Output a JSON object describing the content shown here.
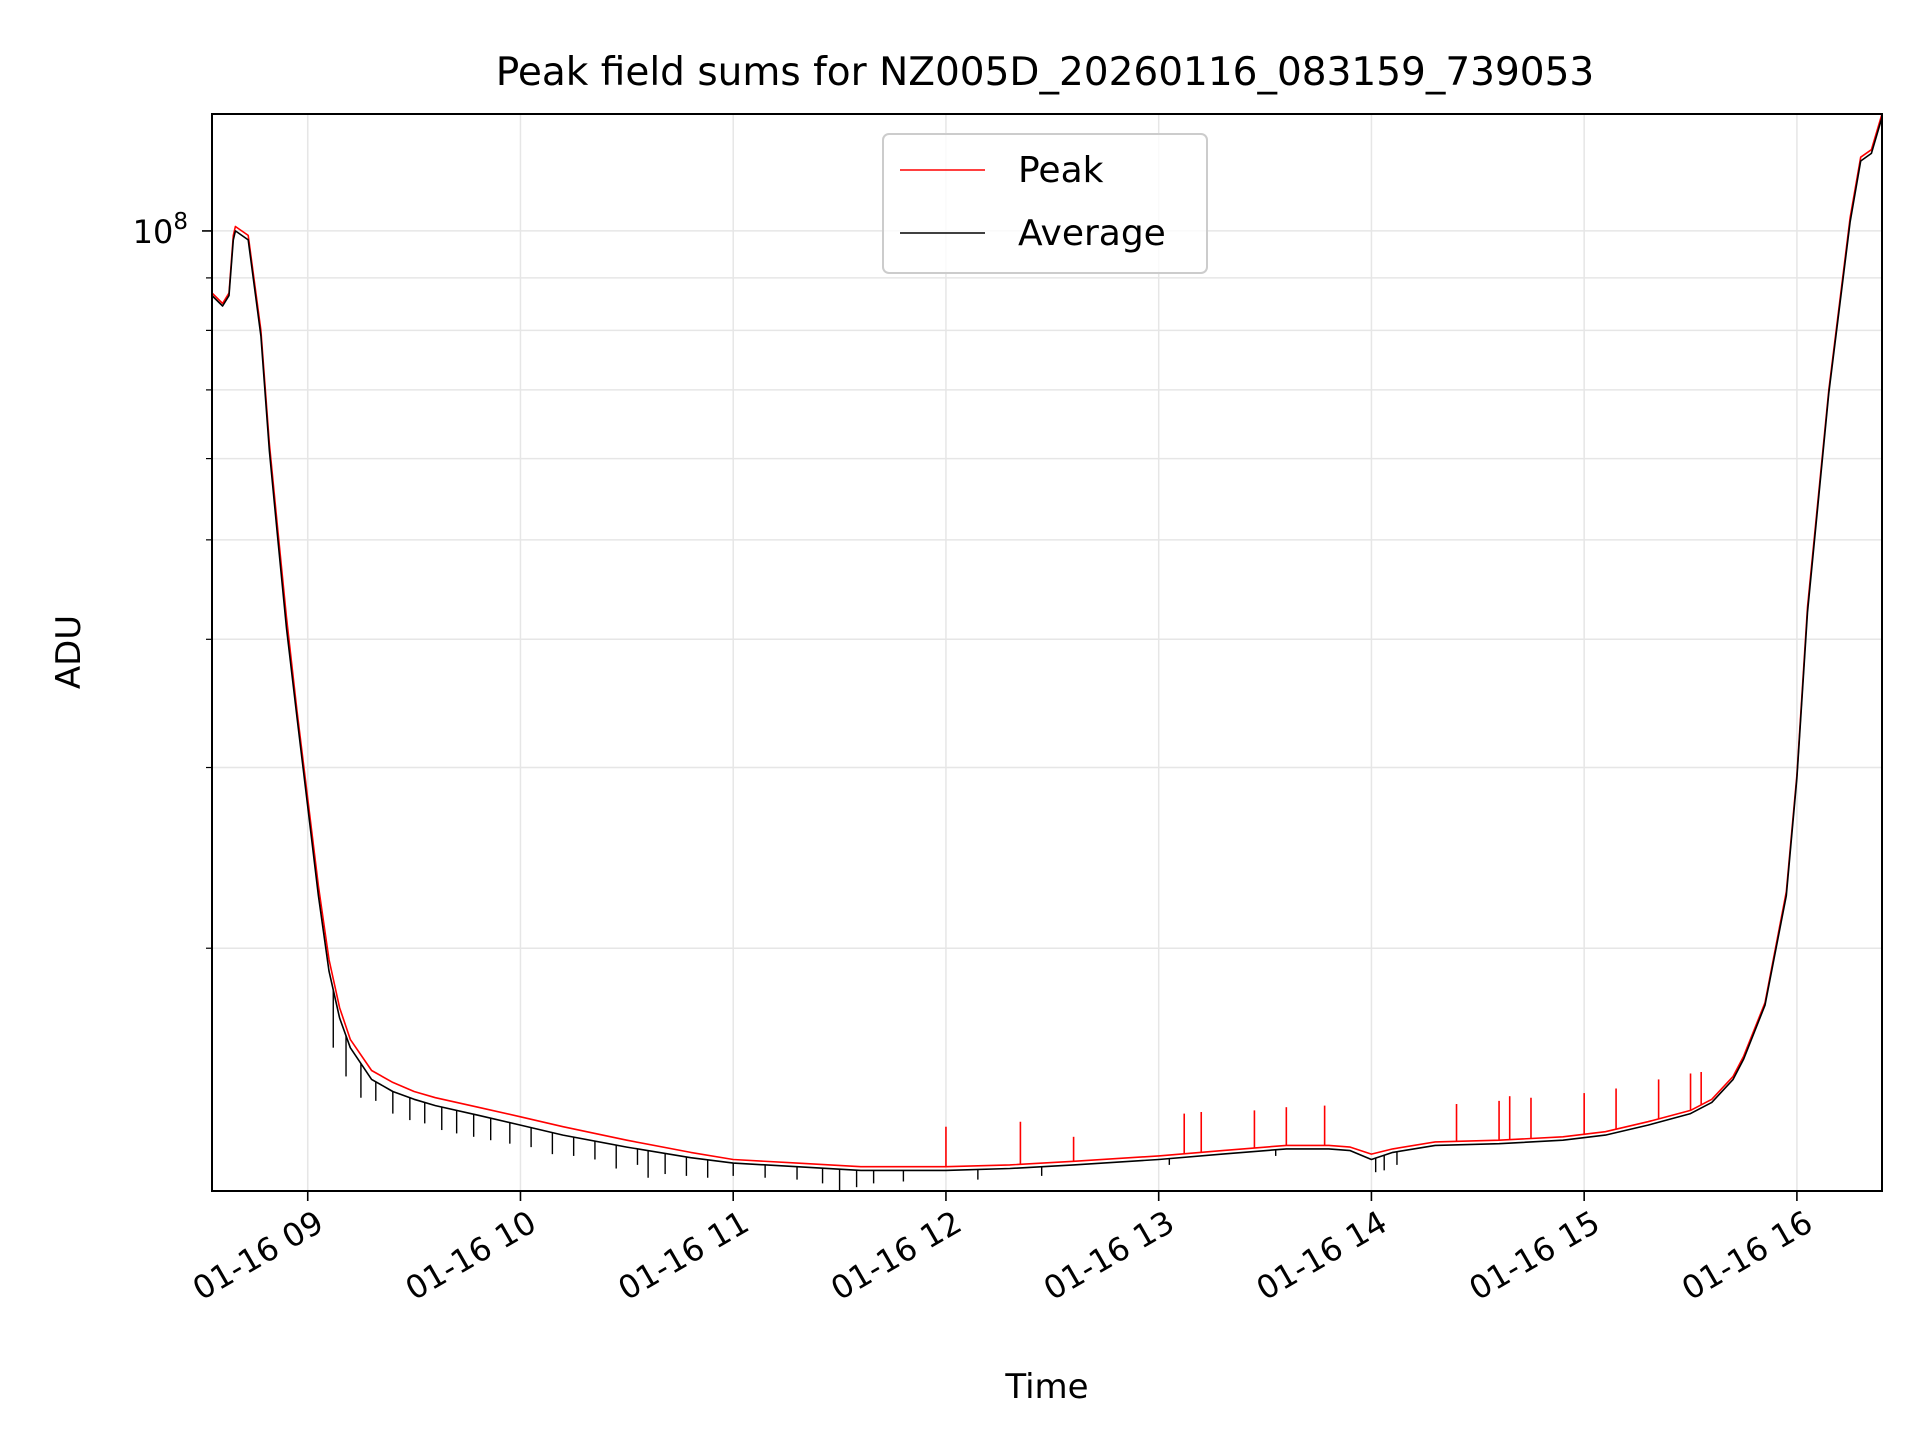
{
  "chart_data": {
    "type": "line",
    "title": "Peak field sums for NZ005D_20260116_083159_739053",
    "xlabel": "Time",
    "ylabel": "ADU",
    "yscale": "log",
    "grid": true,
    "legend_position": "upper-center",
    "xlim": [
      8.55,
      16.4
    ],
    "ylim": [
      11600000,
      130000000
    ],
    "x_tick_values": [
      9,
      10,
      11,
      12,
      13,
      14,
      15,
      16
    ],
    "x_tick_labels": [
      "01-16 09",
      "01-16 10",
      "01-16 11",
      "01-16 12",
      "01-16 13",
      "01-16 14",
      "01-16 15",
      "01-16 16"
    ],
    "y_major_ticks": [
      {
        "value": 100000000,
        "base": "10",
        "exponent": "8"
      }
    ],
    "y_minor_ticks": [
      20000000,
      30000000,
      40000000,
      50000000,
      60000000,
      70000000,
      80000000,
      90000000
    ],
    "colors": {
      "peak": "#ff0000",
      "average": "#000000",
      "grid": "#e6e6e6"
    },
    "series": [
      {
        "name": "Peak",
        "color": "#ff0000",
        "x": [
          8.55,
          8.6,
          8.63,
          8.65,
          8.66,
          8.72,
          8.78,
          8.82,
          8.86,
          8.9,
          8.95,
          9.0,
          9.05,
          9.1,
          9.15,
          9.2,
          9.3,
          9.4,
          9.5,
          9.6,
          9.8,
          10.0,
          10.2,
          10.5,
          10.8,
          11.0,
          11.3,
          11.6,
          12.0,
          12.3,
          12.6,
          13.0,
          13.3,
          13.6,
          13.8,
          13.9,
          14.0,
          14.1,
          14.3,
          14.6,
          14.9,
          15.1,
          15.3,
          15.5,
          15.6,
          15.7,
          15.75,
          15.85,
          15.95,
          16.0,
          16.05,
          16.15,
          16.25,
          16.3,
          16.35,
          16.4
        ],
        "values": [
          87000000,
          85000000,
          87000000,
          99000000,
          101000000,
          99000000,
          80000000,
          62000000,
          51000000,
          42000000,
          34000000,
          28000000,
          23000000,
          19500000,
          17500000,
          16300000,
          15200000,
          14800000,
          14500000,
          14300000,
          14000000,
          13700000,
          13400000,
          13000000,
          12650000,
          12450000,
          12350000,
          12250000,
          12250000,
          12300000,
          12400000,
          12550000,
          12700000,
          12850000,
          12850000,
          12800000,
          12600000,
          12750000,
          12950000,
          13000000,
          13100000,
          13250000,
          13550000,
          13900000,
          14250000,
          15000000,
          15700000,
          17700000,
          22700000,
          29500000,
          43000000,
          70000000,
          103000000,
          118000000,
          120000000,
          130000000
        ],
        "spikes": [
          {
            "x": 12.0,
            "value": 13400000
          },
          {
            "x": 12.35,
            "value": 13550000
          },
          {
            "x": 12.6,
            "value": 13100000
          },
          {
            "x": 13.12,
            "value": 13800000
          },
          {
            "x": 13.2,
            "value": 13850000
          },
          {
            "x": 13.45,
            "value": 13900000
          },
          {
            "x": 13.6,
            "value": 14000000
          },
          {
            "x": 13.78,
            "value": 14050000
          },
          {
            "x": 14.4,
            "value": 14100000
          },
          {
            "x": 14.6,
            "value": 14200000
          },
          {
            "x": 14.65,
            "value": 14350000
          },
          {
            "x": 14.75,
            "value": 14300000
          },
          {
            "x": 15.0,
            "value": 14450000
          },
          {
            "x": 15.15,
            "value": 14600000
          },
          {
            "x": 15.35,
            "value": 14900000
          },
          {
            "x": 15.5,
            "value": 15100000
          },
          {
            "x": 15.55,
            "value": 15150000
          }
        ]
      },
      {
        "name": "Average",
        "color": "#000000",
        "x": [
          8.55,
          8.6,
          8.63,
          8.65,
          8.66,
          8.72,
          8.78,
          8.82,
          8.86,
          8.9,
          8.95,
          9.0,
          9.05,
          9.1,
          9.15,
          9.2,
          9.3,
          9.4,
          9.5,
          9.6,
          9.8,
          10.0,
          10.2,
          10.5,
          10.8,
          11.0,
          11.3,
          11.6,
          12.0,
          12.3,
          12.6,
          13.0,
          13.3,
          13.6,
          13.8,
          13.9,
          14.0,
          14.1,
          14.3,
          14.6,
          14.9,
          15.1,
          15.3,
          15.5,
          15.6,
          15.7,
          15.75,
          15.85,
          15.95,
          16.0,
          16.05,
          16.15,
          16.25,
          16.3,
          16.35,
          16.4
        ],
        "values": [
          86500000,
          84500000,
          86500000,
          98000000,
          100000000,
          98000000,
          79000000,
          61000000,
          50000000,
          41000000,
          33500000,
          27500000,
          22500000,
          19000000,
          17100000,
          16000000,
          14900000,
          14500000,
          14250000,
          14050000,
          13750000,
          13450000,
          13150000,
          12800000,
          12500000,
          12350000,
          12250000,
          12150000,
          12150000,
          12200000,
          12300000,
          12450000,
          12600000,
          12750000,
          12750000,
          12700000,
          12450000,
          12650000,
          12850000,
          12900000,
          13000000,
          13150000,
          13450000,
          13800000,
          14150000,
          14900000,
          15600000,
          17600000,
          22500000,
          29300000,
          42500000,
          69500000,
          102000000,
          117000000,
          119000000,
          129000000
        ],
        "dips": [
          {
            "x": 9.12,
            "value": 16000000
          },
          {
            "x": 9.18,
            "value": 15000000
          },
          {
            "x": 9.25,
            "value": 14300000
          },
          {
            "x": 9.32,
            "value": 14200000
          },
          {
            "x": 9.4,
            "value": 13800000
          },
          {
            "x": 9.48,
            "value": 13600000
          },
          {
            "x": 9.55,
            "value": 13500000
          },
          {
            "x": 9.63,
            "value": 13300000
          },
          {
            "x": 9.7,
            "value": 13200000
          },
          {
            "x": 9.78,
            "value": 13100000
          },
          {
            "x": 9.86,
            "value": 13000000
          },
          {
            "x": 9.95,
            "value": 12900000
          },
          {
            "x": 10.05,
            "value": 12800000
          },
          {
            "x": 10.15,
            "value": 12600000
          },
          {
            "x": 10.25,
            "value": 12550000
          },
          {
            "x": 10.35,
            "value": 12450000
          },
          {
            "x": 10.45,
            "value": 12200000
          },
          {
            "x": 10.55,
            "value": 12300000
          },
          {
            "x": 10.6,
            "value": 11950000
          },
          {
            "x": 10.68,
            "value": 12050000
          },
          {
            "x": 10.78,
            "value": 12000000
          },
          {
            "x": 10.88,
            "value": 11950000
          },
          {
            "x": 11.0,
            "value": 12000000
          },
          {
            "x": 11.15,
            "value": 11950000
          },
          {
            "x": 11.3,
            "value": 11900000
          },
          {
            "x": 11.42,
            "value": 11800000
          },
          {
            "x": 11.5,
            "value": 11600000
          },
          {
            "x": 11.58,
            "value": 11700000
          },
          {
            "x": 11.66,
            "value": 11800000
          },
          {
            "x": 11.8,
            "value": 11850000
          },
          {
            "x": 12.15,
            "value": 11900000
          },
          {
            "x": 12.45,
            "value": 12000000
          },
          {
            "x": 13.05,
            "value": 12300000
          },
          {
            "x": 13.55,
            "value": 12550000
          },
          {
            "x": 14.02,
            "value": 12100000
          },
          {
            "x": 14.06,
            "value": 12150000
          },
          {
            "x": 14.12,
            "value": 12300000
          }
        ]
      }
    ]
  }
}
